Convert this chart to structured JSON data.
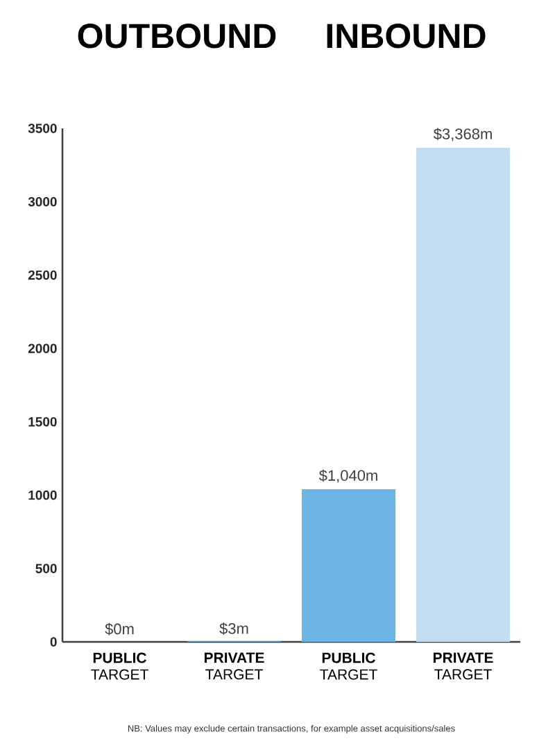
{
  "chart_data": {
    "type": "bar",
    "categories": [
      "**PUBLIC** TARGET",
      "**PRIVATE** TARGET",
      "**PUBLIC** TARGET",
      "**PRIVATE** TARGET"
    ],
    "values": [
      0,
      3,
      1040,
      3368
    ],
    "colors": [
      "#6cb4e4",
      "#6cb4e4",
      "#6cb4e4",
      "#c2dcf2"
    ],
    "value_labels": [
      "$0m",
      "$3m",
      "$1,040m",
      "$3,368m"
    ],
    "ylim": [
      0,
      3500
    ],
    "yticks": [
      0,
      500,
      1000,
      1500,
      2000,
      2500,
      3000,
      3500
    ],
    "annotations": [
      "OUTBOUND",
      "INBOUND",
      "NB: Values may exclude certain transactions, for example asset acquisitions/sales"
    ]
  }
}
